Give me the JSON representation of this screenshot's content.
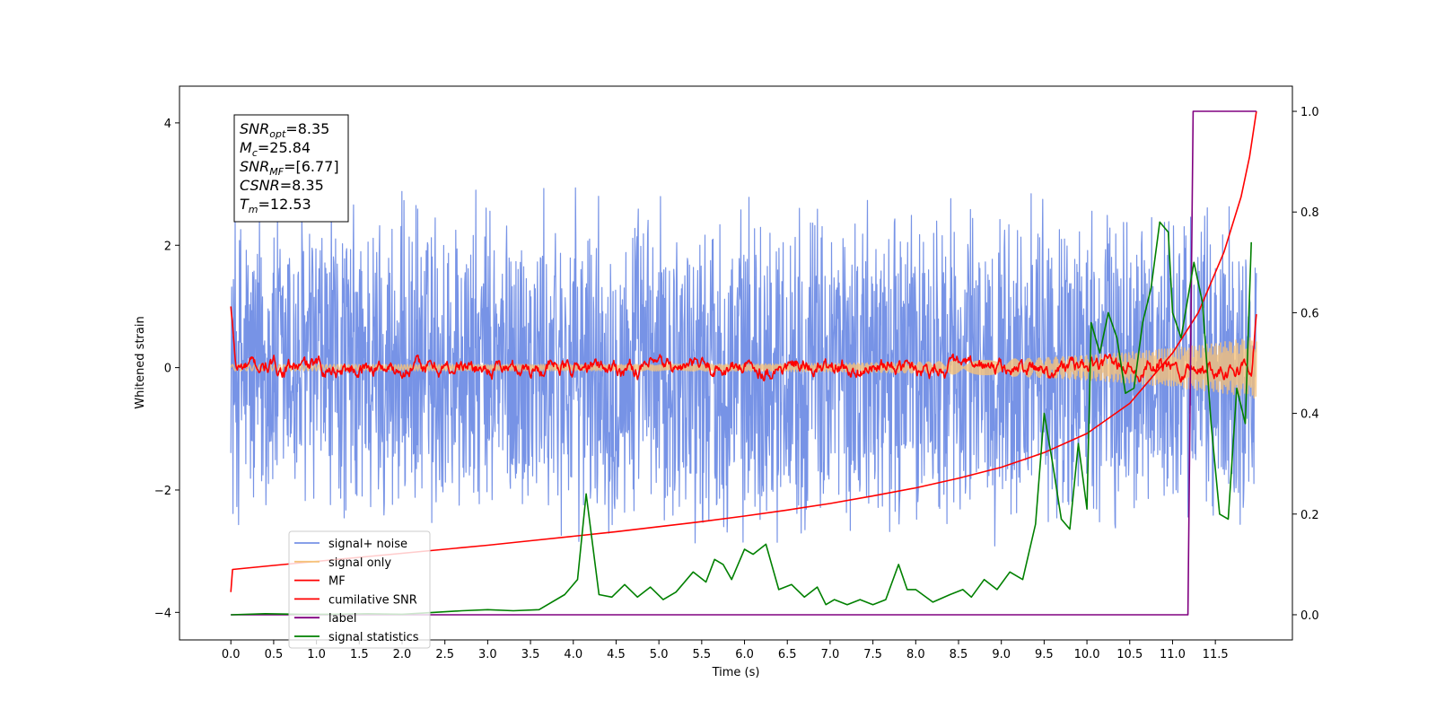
{
  "chart_data": {
    "type": "line",
    "title": "",
    "xlabel": "Time (s)",
    "ylabel": "Whitened strain",
    "y2label": "",
    "xlim": [
      -0.6,
      12.4
    ],
    "ylim": [
      -4.45,
      4.6
    ],
    "y2lim": [
      -0.05,
      1.05
    ],
    "xticks": [
      0.0,
      0.5,
      1.0,
      1.5,
      2.0,
      2.5,
      3.0,
      3.5,
      4.0,
      4.5,
      5.0,
      5.5,
      6.0,
      6.5,
      7.0,
      7.5,
      8.0,
      8.5,
      9.0,
      9.5,
      10.0,
      10.5,
      11.0,
      11.5
    ],
    "xtick_labels": [
      "0.0",
      "0.5",
      "1.0",
      "1.5",
      "2.0",
      "2.5",
      "3.0",
      "3.5",
      "4.0",
      "4.5",
      "5.0",
      "5.5",
      "6.0",
      "6.5",
      "7.0",
      "7.5",
      "8.0",
      "8.5",
      "9.0",
      "9.5",
      "10.0",
      "10.5",
      "11.0",
      "11.5"
    ],
    "yticks": [
      -4,
      -2,
      0,
      2,
      4
    ],
    "ytick_labels": [
      "−4",
      "−2",
      "0",
      "2",
      "4"
    ],
    "y2ticks": [
      0.0,
      0.2,
      0.4,
      0.6,
      0.8,
      1.0
    ],
    "y2tick_labels": [
      "0.0",
      "0.2",
      "0.4",
      "0.6",
      "0.8",
      "1.0"
    ],
    "grid": false,
    "legend_position": "lower-left",
    "annotation": {
      "lines": [
        {
          "sym": "SNR",
          "sub": "opt",
          "val": "=8.35"
        },
        {
          "sym": "M",
          "sub": "c",
          "val": "=25.84"
        },
        {
          "sym": "SNR",
          "sub": "MF",
          "val": "=[6.77]"
        },
        {
          "sym": "CSNR",
          "sub": "",
          "val": "=8.35"
        },
        {
          "sym": "T",
          "sub": "m",
          "val": "=12.53"
        }
      ]
    },
    "series": [
      {
        "name": "signal+ noise",
        "color": "#7793e6",
        "axis": "left",
        "kind": "noise",
        "amplitude": 2.6,
        "x_range": [
          0.0,
          11.98
        ]
      },
      {
        "name": "signal only",
        "color": "#f5c27a",
        "axis": "left",
        "kind": "chirp",
        "amplitude_start": 0.05,
        "amplitude_end": 0.5,
        "x_range": [
          0.0,
          11.98
        ]
      },
      {
        "name": "MF",
        "color": "#ff0000",
        "axis": "left",
        "kind": "noise",
        "amplitude": 0.15,
        "start_value": 1.0,
        "end_value": 1.0,
        "x_range": [
          0.0,
          11.98
        ]
      },
      {
        "name": "cumilative SNR",
        "color": "#ff0000",
        "axis": "right",
        "x": [
          0.0,
          0.02,
          0.5,
          1.0,
          1.5,
          2.0,
          2.5,
          3.0,
          3.5,
          4.0,
          4.5,
          5.0,
          5.5,
          6.0,
          6.5,
          7.0,
          7.5,
          8.0,
          8.5,
          9.0,
          9.5,
          10.0,
          10.5,
          11.0,
          11.3,
          11.6,
          11.8,
          11.9,
          11.98
        ],
        "y": [
          0.045,
          0.09,
          0.098,
          0.106,
          0.114,
          0.122,
          0.13,
          0.138,
          0.147,
          0.156,
          0.165,
          0.175,
          0.185,
          0.196,
          0.208,
          0.221,
          0.236,
          0.252,
          0.271,
          0.293,
          0.322,
          0.36,
          0.42,
          0.52,
          0.6,
          0.72,
          0.83,
          0.91,
          1.0
        ]
      },
      {
        "name": "label",
        "color": "#800080",
        "axis": "right",
        "x": [
          0.0,
          11.18,
          11.24,
          11.98
        ],
        "y": [
          0.0,
          0.0,
          1.0,
          1.0
        ]
      },
      {
        "name": "signal statistics",
        "color": "#008000",
        "axis": "right",
        "x": [
          0.0,
          0.4,
          0.8,
          1.2,
          1.6,
          2.0,
          2.4,
          2.7,
          3.0,
          3.3,
          3.6,
          3.9,
          4.05,
          4.15,
          4.3,
          4.45,
          4.6,
          4.75,
          4.9,
          5.05,
          5.2,
          5.4,
          5.55,
          5.65,
          5.75,
          5.85,
          6.0,
          6.1,
          6.25,
          6.4,
          6.55,
          6.7,
          6.85,
          6.95,
          7.05,
          7.2,
          7.35,
          7.5,
          7.65,
          7.8,
          7.9,
          8.0,
          8.2,
          8.4,
          8.55,
          8.65,
          8.8,
          8.95,
          9.1,
          9.25,
          9.4,
          9.5,
          9.6,
          9.7,
          9.8,
          9.9,
          10.0,
          10.05,
          10.15,
          10.25,
          10.35,
          10.45,
          10.55,
          10.65,
          10.75,
          10.85,
          10.95,
          11.0,
          11.1,
          11.25,
          11.35,
          11.45,
          11.55,
          11.65,
          11.75,
          11.85,
          11.92
        ],
        "y": [
          0.0,
          0.002,
          0.001,
          0.001,
          0.002,
          0.001,
          0.005,
          0.008,
          0.01,
          0.008,
          0.01,
          0.04,
          0.07,
          0.24,
          0.04,
          0.035,
          0.06,
          0.035,
          0.055,
          0.03,
          0.045,
          0.085,
          0.065,
          0.11,
          0.1,
          0.07,
          0.13,
          0.12,
          0.14,
          0.05,
          0.06,
          0.035,
          0.055,
          0.02,
          0.03,
          0.02,
          0.03,
          0.02,
          0.03,
          0.1,
          0.05,
          0.05,
          0.025,
          0.04,
          0.05,
          0.035,
          0.07,
          0.05,
          0.085,
          0.07,
          0.18,
          0.4,
          0.3,
          0.19,
          0.17,
          0.34,
          0.21,
          0.58,
          0.52,
          0.6,
          0.55,
          0.44,
          0.45,
          0.58,
          0.65,
          0.78,
          0.76,
          0.6,
          0.55,
          0.7,
          0.62,
          0.38,
          0.2,
          0.19,
          0.45,
          0.38,
          0.74
        ]
      }
    ]
  }
}
